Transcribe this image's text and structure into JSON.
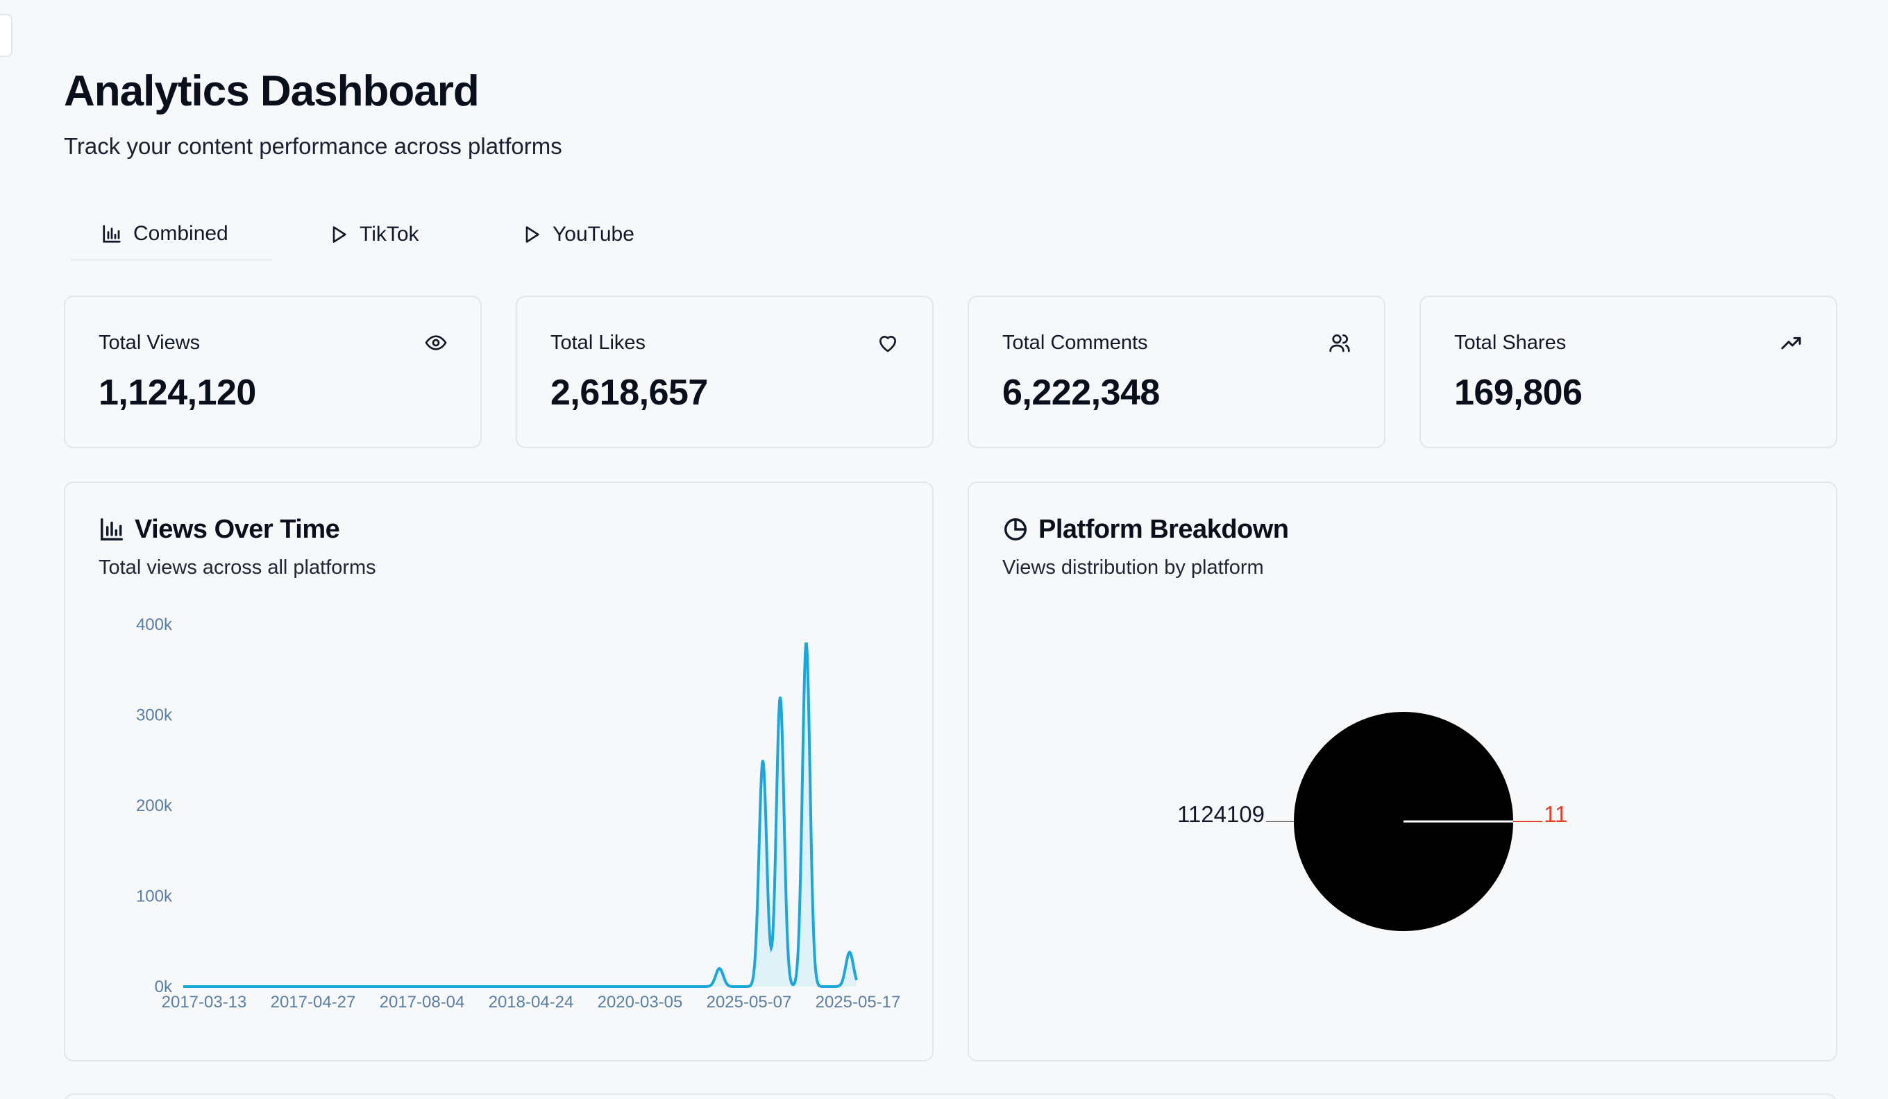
{
  "header": {
    "title": "Analytics Dashboard",
    "subtitle": "Track your content performance across platforms"
  },
  "tabs": [
    {
      "label": "Combined",
      "icon": "bar-chart-icon",
      "active": true
    },
    {
      "label": "TikTok",
      "icon": "play-icon",
      "active": false
    },
    {
      "label": "YouTube",
      "icon": "play-icon",
      "active": false
    }
  ],
  "stats": [
    {
      "label": "Total Views",
      "value": "1,124,120",
      "icon": "eye-icon"
    },
    {
      "label": "Total Likes",
      "value": "2,618,657",
      "icon": "heart-icon"
    },
    {
      "label": "Total Comments",
      "value": "6,222,348",
      "icon": "users-icon"
    },
    {
      "label": "Total Shares",
      "value": "169,806",
      "icon": "trending-up-icon"
    }
  ],
  "views_panel": {
    "title": "Views Over Time",
    "subtitle": "Total views across all platforms",
    "icon": "bar-chart-icon"
  },
  "platform_panel": {
    "title": "Platform Breakdown",
    "subtitle": "Views distribution by platform",
    "icon": "pie-chart-icon"
  },
  "chart_data": [
    {
      "type": "area",
      "title": "Views Over Time",
      "x_tick_labels": [
        "2017-03-13",
        "2017-04-27",
        "2017-08-04",
        "2018-04-24",
        "2020-03-05",
        "2025-05-07",
        "2025-05-17"
      ],
      "y_tick_labels": [
        "0k",
        "100k",
        "200k",
        "300k",
        "400k"
      ],
      "ylim": [
        0,
        400000
      ],
      "points": [
        {
          "x": "2025-05-01",
          "y": 20000
        },
        {
          "x": "2025-05-06",
          "y": 250000
        },
        {
          "x": "2025-05-08",
          "y": 320000
        },
        {
          "x": "2025-05-11",
          "y": 380000
        },
        {
          "x": "2025-05-16",
          "y": 38000
        }
      ],
      "color": "#1ba6dc",
      "fill": "#d6eef7",
      "grid": false
    },
    {
      "type": "pie",
      "title": "Platform Breakdown",
      "slices": [
        {
          "value": 1124109,
          "label": "1124109",
          "color": "#000000"
        },
        {
          "value": 11,
          "label": "11",
          "color": "#e3402c"
        }
      ]
    }
  ],
  "colors": {
    "accent": "#1ba6dc",
    "border": "#e3e6ea",
    "text": "#0a0f1c",
    "tick": "#5b7fa3"
  }
}
